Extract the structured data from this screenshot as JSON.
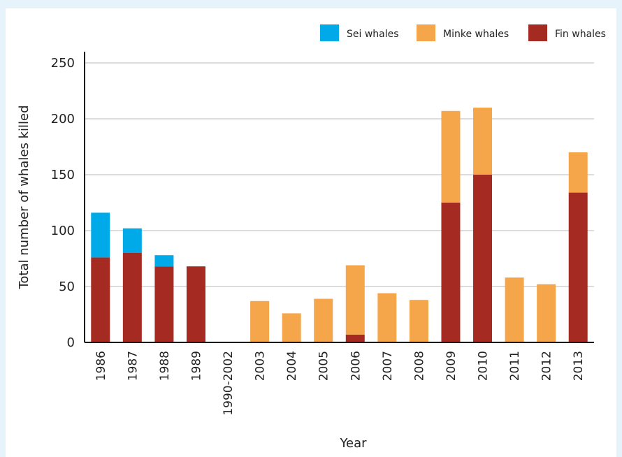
{
  "chart_data": {
    "type": "bar",
    "stacked": true,
    "xlabel": "Year",
    "ylabel": "Total number of whales killed",
    "ylim": [
      0,
      250
    ],
    "yticks": [
      0,
      50,
      100,
      150,
      200,
      250
    ],
    "grid": true,
    "legend_position": "top-right",
    "categories": [
      "1986",
      "1987",
      "1988",
      "1989",
      "1990-2002",
      "2003",
      "2004",
      "2005",
      "2006",
      "2007",
      "2008",
      "2009",
      "2010",
      "2011",
      "2012",
      "2013"
    ],
    "series": [
      {
        "name": "Fin whales",
        "color": "#a52a22",
        "values": [
          76,
          80,
          68,
          68,
          0,
          0,
          0,
          0,
          7,
          0,
          0,
          125,
          150,
          0,
          0,
          134
        ]
      },
      {
        "name": "Minke whales",
        "color": "#f5a54a",
        "values": [
          0,
          0,
          0,
          0,
          0,
          37,
          26,
          39,
          62,
          44,
          38,
          82,
          60,
          58,
          52,
          36
        ]
      },
      {
        "name": "Sei whales",
        "color": "#00a9e8",
        "values": [
          40,
          22,
          10,
          0,
          0,
          0,
          0,
          0,
          0,
          0,
          0,
          0,
          0,
          0,
          0,
          0
        ]
      }
    ],
    "legend_order": [
      "Sei whales",
      "Minke whales",
      "Fin whales"
    ]
  }
}
